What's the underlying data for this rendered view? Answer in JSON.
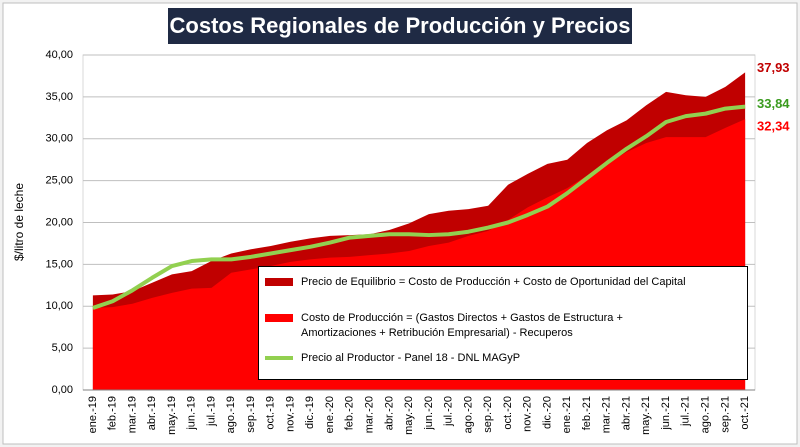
{
  "chart_data": {
    "type": "area",
    "title": "Costos Regionales de Producción y Precios",
    "y_label": "$/litro de leche",
    "categories": [
      "ene.-19",
      "feb.-19",
      "mar.-19",
      "abr.-19",
      "may.-19",
      "jun.-19",
      "jul.-19",
      "ago.-19",
      "sep.-19",
      "oct.-19",
      "nov.-19",
      "dic.-19",
      "ene.-20",
      "feb.-20",
      "mar.-20",
      "abr.-20",
      "may.-20",
      "jun.-20",
      "jul.-20",
      "ago.-20",
      "sep.-20",
      "oct.-20",
      "nov.-20",
      "dic.-20",
      "ene.-21",
      "feb.-21",
      "mar.-21",
      "abr.-21",
      "may.-21",
      "jun.-21",
      "jul.-21",
      "ago.-21",
      "sep.-21",
      "oct.-21"
    ],
    "series": [
      {
        "name": "Precio de Equilibrio = Costo de Producción + Costo de Oportunidad del Capital",
        "color": "#c00000",
        "kind": "area",
        "values": [
          11.3,
          11.4,
          11.8,
          12.8,
          13.8,
          14.2,
          15.4,
          16.3,
          16.8,
          17.2,
          17.7,
          18.1,
          18.4,
          18.5,
          18.6,
          19.1,
          19.9,
          21.0,
          21.4,
          21.6,
          22.0,
          24.5,
          25.8,
          27.0,
          27.5,
          29.5,
          31.0,
          32.2,
          34.0,
          35.6,
          35.2,
          35.0,
          36.2,
          37.93
        ],
        "value_labels": [
          null,
          null,
          null,
          null,
          null,
          null,
          null,
          null,
          null,
          null,
          null,
          null,
          null,
          null,
          null,
          null,
          null,
          null,
          null,
          null,
          null,
          null,
          null,
          null,
          null,
          null,
          null,
          null,
          null,
          null,
          null,
          null,
          null,
          "37,93"
        ]
      },
      {
        "name": "Costo de Producción = (Gastos Directos + Gastos de Estructura + Amortizaciones + Retribución Empresarial) - Recuperos",
        "color": "#ff0000",
        "kind": "area",
        "values": [
          9.8,
          9.9,
          10.3,
          11.0,
          11.6,
          12.1,
          12.2,
          14.0,
          14.4,
          14.8,
          15.3,
          15.6,
          15.8,
          15.9,
          16.1,
          16.3,
          16.6,
          17.2,
          17.6,
          18.4,
          19.0,
          20.3,
          21.8,
          23.0,
          24.1,
          25.6,
          27.0,
          28.4,
          29.5,
          30.2,
          30.2,
          30.2,
          31.3,
          32.34
        ],
        "value_labels": [
          null,
          null,
          null,
          null,
          null,
          null,
          null,
          null,
          null,
          null,
          null,
          null,
          null,
          null,
          null,
          null,
          null,
          null,
          null,
          null,
          null,
          null,
          null,
          null,
          null,
          null,
          null,
          null,
          null,
          null,
          null,
          null,
          null,
          "32,34"
        ]
      },
      {
        "name": "Precio al Productor - Panel 18 - DNL MAGyP",
        "color": "#92d050",
        "kind": "line",
        "values": [
          9.8,
          10.6,
          11.9,
          13.4,
          14.8,
          15.4,
          15.6,
          15.6,
          15.9,
          16.3,
          16.7,
          17.1,
          17.6,
          18.2,
          18.4,
          18.6,
          18.6,
          18.5,
          18.6,
          18.9,
          19.4,
          20.0,
          20.9,
          21.9,
          23.5,
          25.3,
          27.1,
          28.8,
          30.3,
          32.0,
          32.7,
          33.0,
          33.6,
          33.84
        ],
        "value_labels": [
          null,
          null,
          null,
          null,
          null,
          null,
          null,
          null,
          null,
          null,
          null,
          null,
          null,
          null,
          null,
          null,
          null,
          null,
          null,
          null,
          null,
          null,
          null,
          null,
          null,
          null,
          null,
          null,
          null,
          null,
          null,
          null,
          null,
          "33,84"
        ]
      }
    ],
    "ylim": [
      0,
      40
    ],
    "yticks": [
      {
        "value": 0,
        "label": "0,00"
      },
      {
        "value": 5,
        "label": "5,00"
      },
      {
        "value": 10,
        "label": "10,00"
      },
      {
        "value": 15,
        "label": "15,00"
      },
      {
        "value": 20,
        "label": "20,00"
      },
      {
        "value": 25,
        "label": "25,00"
      },
      {
        "value": 30,
        "label": "30,00"
      },
      {
        "value": 35,
        "label": "35,00"
      },
      {
        "value": 40,
        "label": "40,00"
      }
    ],
    "grid": true
  }
}
